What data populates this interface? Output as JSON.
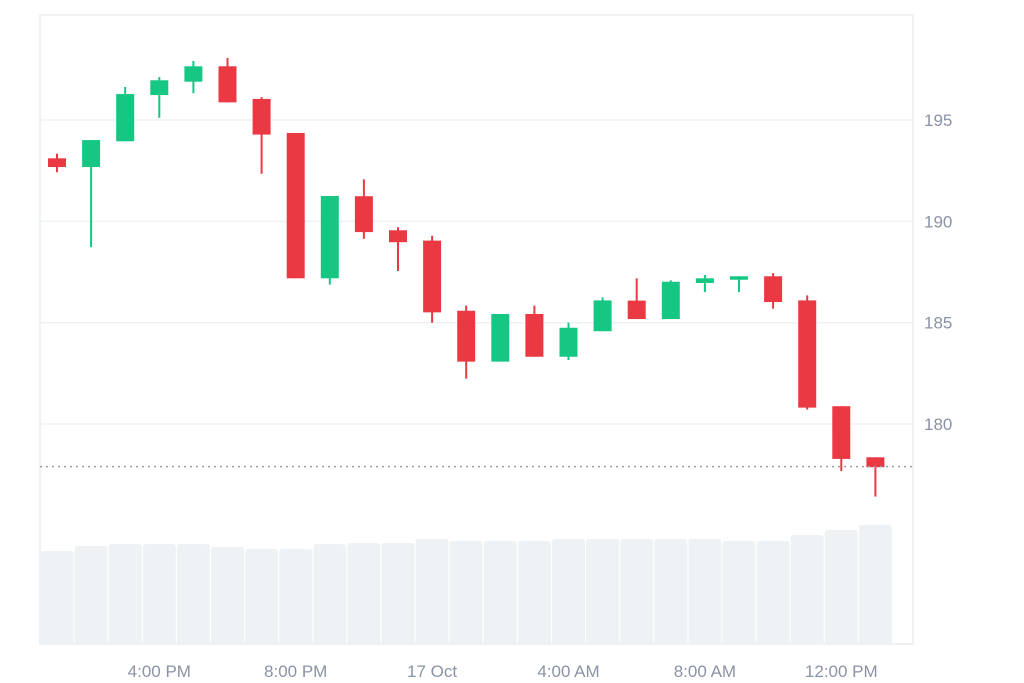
{
  "chart_data": {
    "type": "candlestick",
    "title": "",
    "xlabel": "",
    "ylabel": "",
    "ylim": [
      174.5,
      200.0
    ],
    "grid": true,
    "y_ticks": [
      "195",
      "190",
      "185",
      "180"
    ],
    "y_tick_values": [
      195,
      190,
      185,
      180
    ],
    "x_ticks": [
      {
        "index": 3,
        "label": "4:00 PM"
      },
      {
        "index": 7,
        "label": "8:00 PM"
      },
      {
        "index": 11,
        "label": "17 Oct"
      },
      {
        "index": 15,
        "label": "4:00 AM"
      },
      {
        "index": 19,
        "label": "8:00 AM"
      },
      {
        "index": 23,
        "label": "12:00 PM"
      }
    ],
    "last_price_line": 177.9,
    "colors": {
      "up": "#16c784",
      "down": "#ea3943",
      "volume": "#eff2f5",
      "grid": "#eff2f5",
      "tick_text": "#8a93a6",
      "last_price": "#9aa0aa"
    },
    "candles": [
      {
        "open": 193.11,
        "high": 193.34,
        "low": 192.42,
        "close": 192.68
      },
      {
        "open": 192.68,
        "high": 194.01,
        "low": 188.72,
        "close": 194.01
      },
      {
        "open": 193.95,
        "high": 196.63,
        "low": 193.95,
        "close": 196.28
      },
      {
        "open": 196.23,
        "high": 197.12,
        "low": 195.11,
        "close": 196.96
      },
      {
        "open": 196.89,
        "high": 197.91,
        "low": 196.32,
        "close": 197.65
      },
      {
        "open": 197.65,
        "high": 198.06,
        "low": 195.87,
        "close": 195.87
      },
      {
        "open": 196.04,
        "high": 196.13,
        "low": 192.35,
        "close": 194.28
      },
      {
        "open": 194.36,
        "high": 194.36,
        "low": 187.19,
        "close": 187.19
      },
      {
        "open": 187.19,
        "high": 191.25,
        "low": 186.88,
        "close": 191.25
      },
      {
        "open": 191.24,
        "high": 192.07,
        "low": 189.14,
        "close": 189.47
      },
      {
        "open": 189.56,
        "high": 189.71,
        "low": 187.55,
        "close": 188.97
      },
      {
        "open": 189.05,
        "high": 189.29,
        "low": 185.0,
        "close": 185.51
      },
      {
        "open": 185.59,
        "high": 185.84,
        "low": 182.24,
        "close": 183.08
      },
      {
        "open": 183.08,
        "high": 185.43,
        "low": 183.08,
        "close": 185.43
      },
      {
        "open": 185.43,
        "high": 185.84,
        "low": 183.32,
        "close": 183.32
      },
      {
        "open": 183.32,
        "high": 185.0,
        "low": 183.16,
        "close": 184.75
      },
      {
        "open": 184.58,
        "high": 186.25,
        "low": 184.58,
        "close": 186.1
      },
      {
        "open": 186.09,
        "high": 187.19,
        "low": 185.18,
        "close": 185.18
      },
      {
        "open": 185.18,
        "high": 187.09,
        "low": 185.18,
        "close": 187.02
      },
      {
        "open": 186.96,
        "high": 187.35,
        "low": 186.51,
        "close": 187.19
      },
      {
        "open": 187.12,
        "high": 187.29,
        "low": 186.51,
        "close": 187.29
      },
      {
        "open": 187.29,
        "high": 187.45,
        "low": 185.69,
        "close": 186.02
      },
      {
        "open": 186.1,
        "high": 186.35,
        "low": 180.71,
        "close": 180.81
      },
      {
        "open": 180.88,
        "high": 180.88,
        "low": 177.68,
        "close": 178.28
      },
      {
        "open": 178.36,
        "high": 178.36,
        "low": 176.42,
        "close": 177.87
      }
    ],
    "volume_relative": [
      93,
      98,
      100,
      100,
      100,
      97,
      95,
      95,
      100,
      101,
      101,
      105,
      103,
      103,
      103,
      105,
      105,
      105,
      105,
      105,
      103,
      103,
      109,
      114,
      119
    ]
  }
}
